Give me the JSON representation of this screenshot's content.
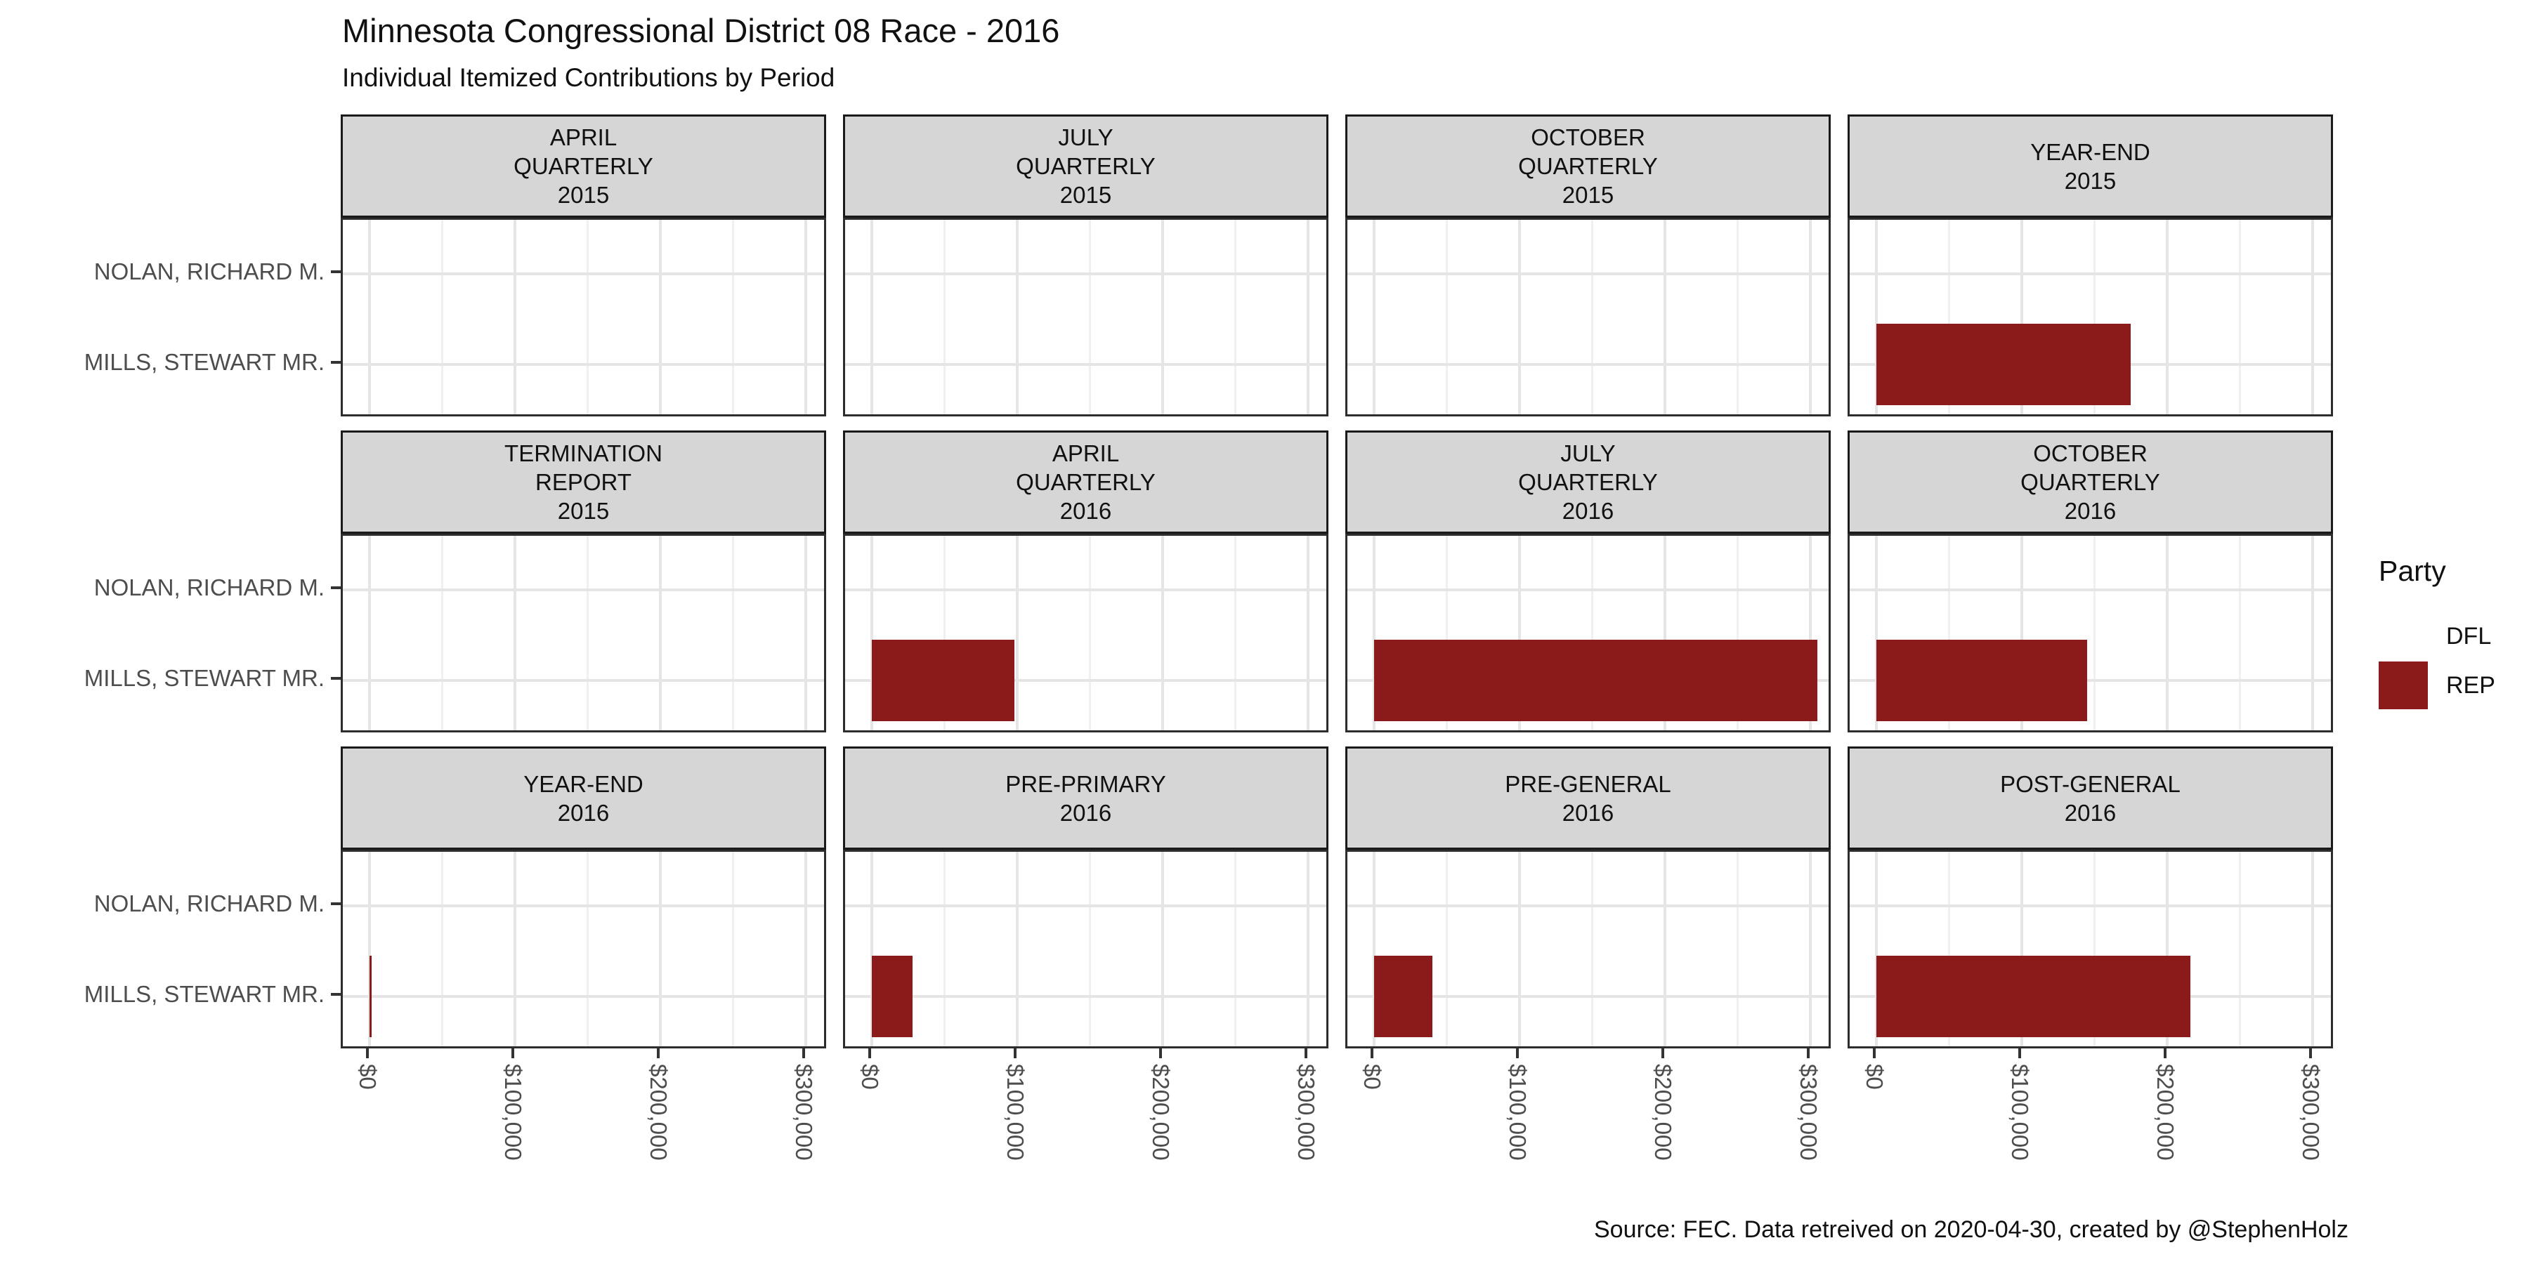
{
  "title": "Minnesota Congressional District 08 Race - 2016",
  "subtitle": "Individual Itemized Contributions by Period",
  "caption": "Source: FEC. Data retreived on 2020-04-30, created by @StephenHolz",
  "legend": {
    "title": "Party",
    "entries": [
      {
        "label": "DFL",
        "color": "#FFFFFF"
      },
      {
        "label": "REP",
        "color": "#8B1A1A"
      }
    ]
  },
  "colors": {
    "rep_bar": "#8B1A1A",
    "dfl_bar": "#FFFFFF",
    "strip_fill": "#D6D6D6",
    "strip_border": "#1a1a1a",
    "panel_border": "#2d2d2d",
    "grid_major": "#E5E5E5",
    "grid_minor": "#F0F0F0",
    "axis_text": "#4d4d4d"
  },
  "chart_data": {
    "type": "bar",
    "orientation": "horizontal",
    "title": "Minnesota Congressional District 08 Race - 2016",
    "subtitle": "Individual Itemized Contributions by Period",
    "categories": [
      "NOLAN, RICHARD M.",
      "MILLS, STEWART MR."
    ],
    "x_axis": {
      "tick_labels": [
        "$0",
        "$100,000",
        "$200,000",
        "$300,000"
      ],
      "tick_values": [
        0,
        100000,
        200000,
        300000
      ],
      "minor_step": 50000,
      "axis_max": 318000,
      "grid": "on"
    },
    "legend_position": "right",
    "series_key": "Party",
    "facet_layout": {
      "rows": 3,
      "cols": 4
    },
    "facets": [
      {
        "strip": [
          "APRIL",
          "QUARTERLY",
          "2015"
        ],
        "bars": []
      },
      {
        "strip": [
          "JULY",
          "QUARTERLY",
          "2015"
        ],
        "bars": []
      },
      {
        "strip": [
          "OCTOBER",
          "QUARTERLY",
          "2015"
        ],
        "bars": []
      },
      {
        "strip": [
          "YEAR-END",
          "2015"
        ],
        "bars": [
          {
            "category": "MILLS, STEWART MR.",
            "party": "REP",
            "value": 175000
          }
        ]
      },
      {
        "strip": [
          "TERMINATION",
          "REPORT",
          "2015"
        ],
        "bars": []
      },
      {
        "strip": [
          "APRIL",
          "QUARTERLY",
          "2016"
        ],
        "bars": [
          {
            "category": "MILLS, STEWART MR.",
            "party": "REP",
            "value": 98000
          }
        ]
      },
      {
        "strip": [
          "JULY",
          "QUARTERLY",
          "2016"
        ],
        "bars": [
          {
            "category": "MILLS, STEWART MR.",
            "party": "REP",
            "value": 305000
          }
        ]
      },
      {
        "strip": [
          "OCTOBER",
          "QUARTERLY",
          "2016"
        ],
        "bars": [
          {
            "category": "MILLS, STEWART MR.",
            "party": "REP",
            "value": 145000
          }
        ]
      },
      {
        "strip": [
          "YEAR-END",
          "2016"
        ],
        "bars": [
          {
            "category": "MILLS, STEWART MR.",
            "party": "REP",
            "value": 1500
          }
        ]
      },
      {
        "strip": [
          "PRE-PRIMARY",
          "2016"
        ],
        "bars": [
          {
            "category": "MILLS, STEWART MR.",
            "party": "REP",
            "value": 28000
          }
        ]
      },
      {
        "strip": [
          "PRE-GENERAL",
          "2016"
        ],
        "bars": [
          {
            "category": "MILLS, STEWART MR.",
            "party": "REP",
            "value": 40000
          }
        ]
      },
      {
        "strip": [
          "POST-GENERAL",
          "2016"
        ],
        "bars": [
          {
            "category": "MILLS, STEWART MR.",
            "party": "REP",
            "value": 216000
          }
        ]
      }
    ],
    "party_colors": {
      "DFL": "#FFFFFF",
      "REP": "#8B1A1A"
    }
  }
}
